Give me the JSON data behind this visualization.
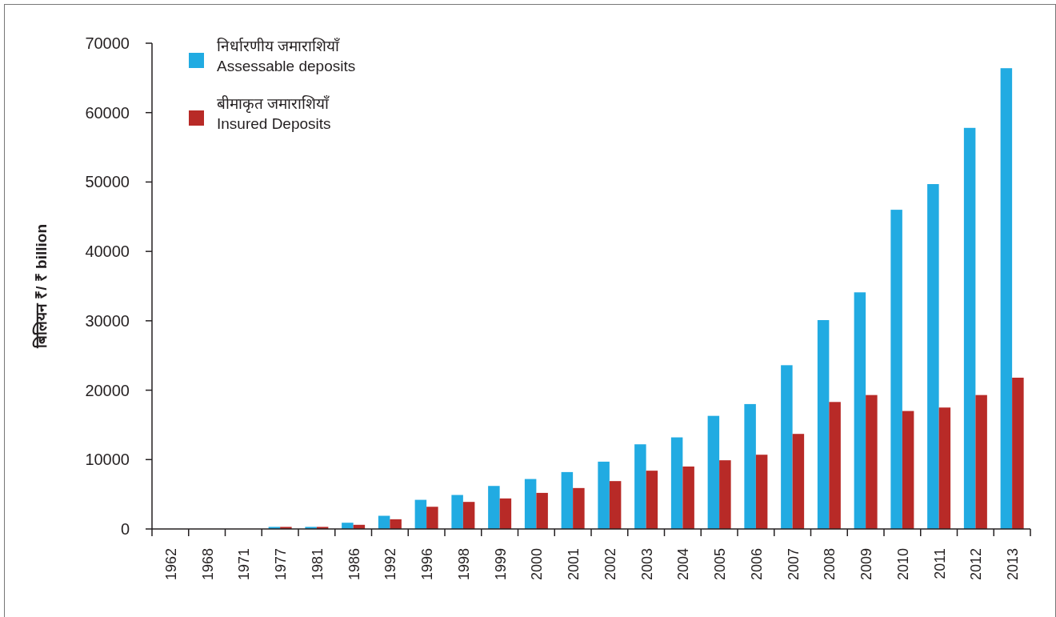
{
  "chart_data": {
    "type": "bar",
    "ylabel": "बिलियन ₹/ ₹ billion",
    "categories": [
      "1962",
      "1968",
      "1971",
      "1977",
      "1981",
      "1986",
      "1992",
      "1996",
      "1998",
      "1999",
      "2000",
      "2001",
      "2002",
      "2003",
      "2004",
      "2005",
      "2006",
      "2007",
      "2008",
      "2009",
      "2010",
      "2011",
      "2012",
      "2013"
    ],
    "series": [
      {
        "name": "निर्धारणीय जमाराशियाँ\nAssessable deposits",
        "color": "#21abe2",
        "values": [
          0,
          0,
          0,
          300,
          300,
          900,
          1900,
          4200,
          4900,
          6200,
          7200,
          8200,
          9700,
          12200,
          13200,
          16300,
          18000,
          23600,
          30100,
          34100,
          46000,
          49700,
          57800,
          66400
        ]
      },
      {
        "name": "बीमाकृत जमाराशियाँ\nInsured Deposits",
        "color": "#b82a27",
        "values": [
          0,
          0,
          0,
          300,
          300,
          600,
          1400,
          3200,
          3900,
          4400,
          5200,
          5900,
          6900,
          8400,
          9000,
          9900,
          10700,
          13700,
          18300,
          19300,
          17000,
          17500,
          19300,
          21800
        ]
      }
    ],
    "ylim": [
      0,
      70000
    ],
    "yticks": [
      0,
      10000,
      20000,
      30000,
      40000,
      50000,
      60000,
      70000
    ],
    "legend": "top left"
  }
}
